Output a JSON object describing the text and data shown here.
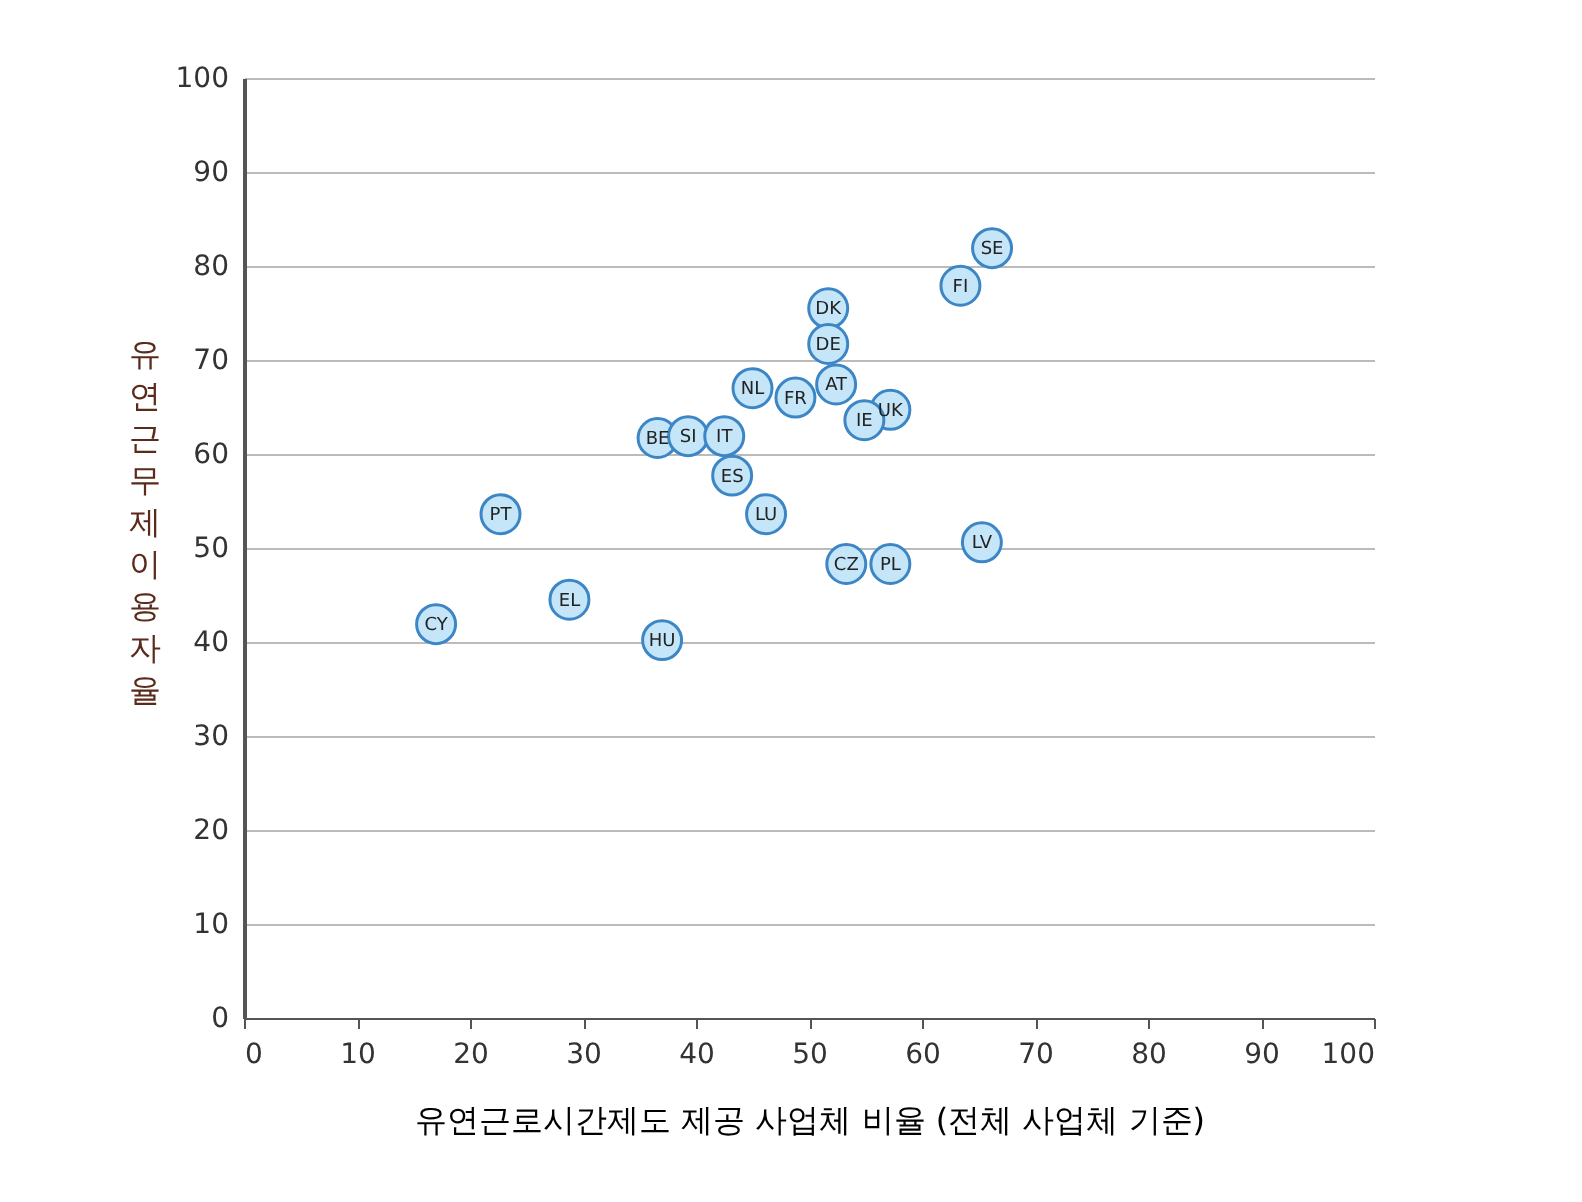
{
  "chart_data": {
    "type": "scatter",
    "xlabel": "유연근로시간제도 제공 사업체 비율 (전체 사업체 기준)",
    "ylabel": "유연근무제  이용자율",
    "series": [
      {
        "color": "#c5e5f8",
        "x": [
          66.2,
          63.4,
          51.7,
          51.7,
          52.4,
          45.0,
          48.8,
          57.2,
          54.9,
          36.6,
          39.3,
          42.5,
          43.2,
          46.2,
          22.7,
          65.3,
          53.3,
          57.2,
          28.8,
          17.0,
          37.0
        ],
        "values": [
          81.9,
          77.9,
          75.5,
          71.7,
          67.4,
          67.0,
          66.0,
          64.7,
          63.6,
          61.7,
          61.9,
          61.9,
          57.7,
          53.6,
          53.6,
          50.6,
          48.3,
          48.3,
          44.5,
          41.9,
          40.2
        ]
      }
    ],
    "annotations": [
      {
        "text": "SE",
        "x": 66.2,
        "y": 81.9
      },
      {
        "text": "FI",
        "x": 63.4,
        "y": 77.9
      },
      {
        "text": "DK",
        "x": 51.7,
        "y": 75.5
      },
      {
        "text": "DE",
        "x": 51.7,
        "y": 71.7
      },
      {
        "text": "AT",
        "x": 52.4,
        "y": 67.4
      },
      {
        "text": "NL",
        "x": 45.0,
        "y": 67.0
      },
      {
        "text": "FR",
        "x": 48.8,
        "y": 66.0
      },
      {
        "text": "UK",
        "x": 57.2,
        "y": 64.7
      },
      {
        "text": "IE",
        "x": 54.9,
        "y": 63.6
      },
      {
        "text": "BE",
        "x": 36.6,
        "y": 61.7
      },
      {
        "text": "SI",
        "x": 39.3,
        "y": 61.9
      },
      {
        "text": "IT",
        "x": 42.5,
        "y": 61.9
      },
      {
        "text": "ES",
        "x": 43.2,
        "y": 57.7
      },
      {
        "text": "LU",
        "x": 46.2,
        "y": 53.6
      },
      {
        "text": "PT",
        "x": 22.7,
        "y": 53.6
      },
      {
        "text": "LV",
        "x": 65.3,
        "y": 50.6
      },
      {
        "text": "CZ",
        "x": 53.3,
        "y": 48.3
      },
      {
        "text": "PL",
        "x": 57.2,
        "y": 48.3
      },
      {
        "text": "EL",
        "x": 28.8,
        "y": 44.5
      },
      {
        "text": "CY",
        "x": 17.0,
        "y": 41.9
      },
      {
        "text": "HU",
        "x": 37.0,
        "y": 40.2
      }
    ],
    "xlim": [
      0,
      100
    ],
    "ylim": [
      0,
      100
    ],
    "xticks": [
      0,
      10,
      20,
      30,
      40,
      50,
      60,
      70,
      80,
      90,
      100
    ],
    "yticks": [
      0,
      10,
      20,
      30,
      40,
      50,
      60,
      70,
      80,
      90,
      100
    ],
    "grid": "y",
    "marker": "circle"
  }
}
